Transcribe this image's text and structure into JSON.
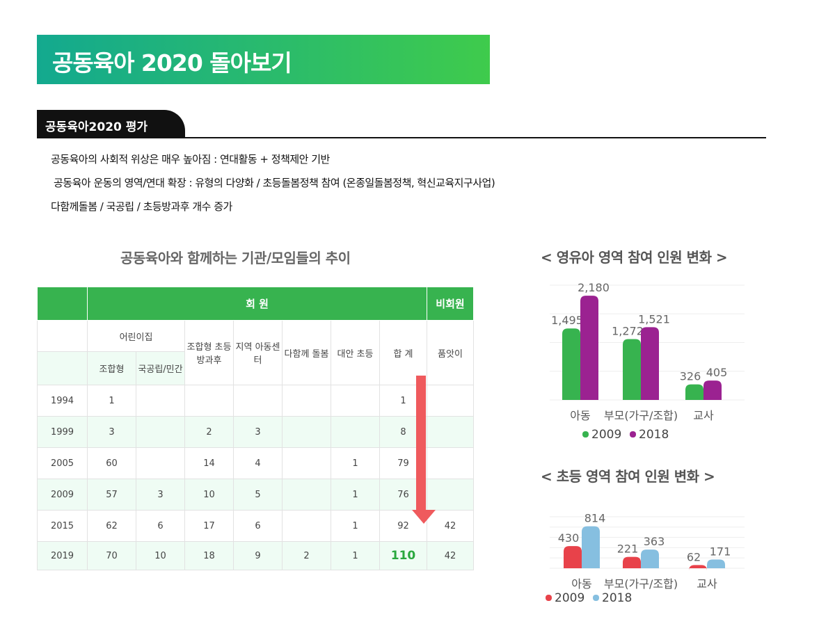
{
  "title": "공동육아 2020 돌아보기",
  "section": "공동육아2020 평가",
  "bullets": [
    "공동육아의 사회적 위상은 매우 높아짐 : 연대활동 + 정책제안 기반",
    "공동육아 운동의 영역/연대 확장 : 유형의 다양화 / 초등돌봄정책 참여 (온종일돌봄정책, 혁신교육지구사업)",
    "다함께돌봄 / 국공립 / 초등방과후 개수 증가"
  ],
  "table": {
    "title": "공동육아와 함께하는 기관/모임들의 추이",
    "group_member": "회 원",
    "group_nonmember": "비회원",
    "col_daycare": "어린이집",
    "col_coop": "조합형",
    "col_public": "국공립/민간",
    "col_after": "조합형 초등방과후",
    "col_center": "지역 아동센터",
    "col_together": "다함께 돌봄",
    "col_alt": "대안 초등",
    "col_total": "합 계",
    "col_pumasi": "품앗이",
    "rows": [
      [
        "1994",
        "1",
        "",
        "",
        "",
        "",
        "",
        "1",
        ""
      ],
      [
        "1999",
        "3",
        "",
        "2",
        "3",
        "",
        "",
        "8",
        ""
      ],
      [
        "2005",
        "60",
        "",
        "14",
        "4",
        "",
        "1",
        "79",
        ""
      ],
      [
        "2009",
        "57",
        "3",
        "10",
        "5",
        "",
        "1",
        "76",
        ""
      ],
      [
        "2015",
        "62",
        "6",
        "17",
        "6",
        "",
        "1",
        "92",
        "42"
      ],
      [
        "2019",
        "70",
        "10",
        "18",
        "9",
        "2",
        "1",
        "110",
        "42"
      ]
    ]
  },
  "chart_data": [
    {
      "type": "bar",
      "title": "< 영유아 영역 참여 인원 변화 >",
      "categories": [
        "아동",
        "부모(가구/조합)",
        "교사"
      ],
      "series": [
        {
          "name": "2009",
          "color": "#37b34f",
          "values": [
            1495,
            1272,
            326
          ]
        },
        {
          "name": "2018",
          "color": "#9b2291",
          "values": [
            2180,
            1521,
            405
          ]
        }
      ],
      "ylim": [
        0,
        2400
      ],
      "grid": true,
      "legend": "bottom"
    },
    {
      "type": "bar",
      "title": "<  초등 영역 참여 인원 변화 >",
      "categories": [
        "아동",
        "부모(가구/조합)",
        "교사"
      ],
      "series": [
        {
          "name": "2009",
          "color": "#e8424a",
          "values": [
            430,
            221,
            62
          ]
        },
        {
          "name": "2018",
          "color": "#86bfe0",
          "values": [
            814,
            363,
            171
          ]
        }
      ],
      "ylim": [
        0,
        1000
      ],
      "grid": true,
      "legend": "bottom"
    }
  ]
}
